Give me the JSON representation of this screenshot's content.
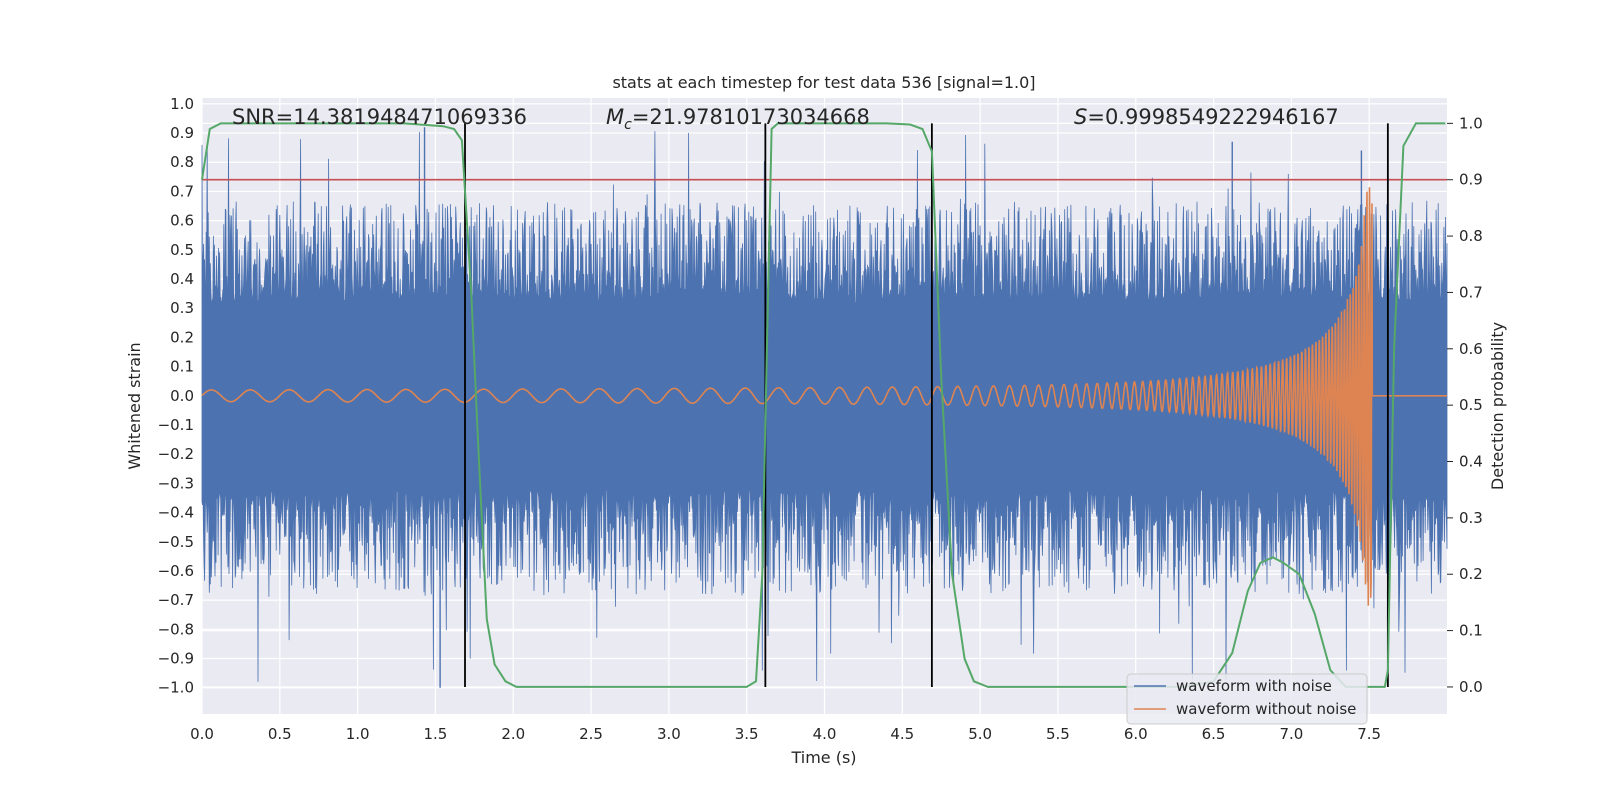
{
  "chart_data": {
    "type": "line",
    "title": "stats at each timestep for test data 536 [signal=1.0]",
    "xlabel": "Time (s)",
    "ylabel": "Whitened strain",
    "y2label": "Detection probability",
    "xlim": [
      0.0,
      8.0
    ],
    "ylim": [
      -1.09,
      1.02
    ],
    "y2lim": [
      -0.048,
      1.045
    ],
    "xticks": [
      "0.0",
      "0.5",
      "1.0",
      "1.5",
      "2.0",
      "2.5",
      "3.0",
      "3.5",
      "4.0",
      "4.5",
      "5.0",
      "5.5",
      "6.0",
      "6.5",
      "7.0",
      "7.5"
    ],
    "yticks": [
      "1.0",
      "0.9",
      "0.8",
      "0.7",
      "0.6",
      "0.5",
      "0.4",
      "0.3",
      "0.2",
      "0.1",
      "0.0",
      "−0.1",
      "−0.2",
      "−0.3",
      "−0.4",
      "−0.5",
      "−0.6",
      "−0.7",
      "−0.8",
      "−0.9",
      "−1.0"
    ],
    "y2ticks": [
      "1.0",
      "0.9",
      "0.8",
      "0.7",
      "0.6",
      "0.5",
      "0.4",
      "0.3",
      "0.2",
      "0.1",
      "0.0"
    ],
    "annotations": {
      "snr": "SNR=14.381948471069336",
      "mc_symbol": "M",
      "mc_sub": "c",
      "mc_value": "=21.97810173034668",
      "s_symbol": "S",
      "s_value": "=0.9998549222946167"
    },
    "threshold": {
      "axis": "right",
      "value": 0.9,
      "color": "#c44e52"
    },
    "vertical_markers": [
      1.69,
      3.62,
      4.69,
      7.62
    ],
    "noise_envelope": {
      "core_amplitude": 0.33,
      "typical_peak": 0.55,
      "max_peak": 0.92,
      "min_trough": -1.0
    },
    "chirp": {
      "start_amp": 0.02,
      "peak_amp": 0.72,
      "merger_time": 7.52,
      "start_freq_hz": 4,
      "end_freq_hz": 60
    },
    "series": [
      {
        "name": "waveform with noise",
        "axis": "left",
        "color": "#4c72b0"
      },
      {
        "name": "waveform without noise",
        "axis": "left",
        "color": "#dd8452"
      },
      {
        "name": "detection probability",
        "axis": "right",
        "color": "#55a868",
        "x": [
          0.0,
          0.05,
          0.12,
          0.3,
          0.5,
          1.0,
          1.3,
          1.55,
          1.62,
          1.67,
          1.73,
          1.78,
          1.83,
          1.88,
          1.95,
          2.02,
          2.1,
          2.5,
          3.0,
          3.3,
          3.5,
          3.56,
          3.6,
          3.63,
          3.66,
          3.7,
          3.8,
          4.0,
          4.4,
          4.55,
          4.63,
          4.69,
          4.75,
          4.82,
          4.9,
          4.96,
          5.05,
          5.5,
          6.0,
          6.3,
          6.5,
          6.62,
          6.72,
          6.8,
          6.88,
          6.95,
          7.05,
          7.15,
          7.25,
          7.35,
          7.45,
          7.5,
          7.55,
          7.6,
          7.62,
          7.66,
          7.72,
          7.8,
          7.9,
          7.99
        ],
        "y": [
          0.9,
          0.99,
          1.0,
          1.0,
          1.0,
          1.0,
          1.0,
          0.995,
          0.99,
          0.97,
          0.7,
          0.4,
          0.12,
          0.04,
          0.01,
          0.0,
          0.0,
          0.0,
          0.0,
          0.0,
          0.0,
          0.01,
          0.2,
          0.6,
          0.99,
          1.0,
          1.0,
          1.0,
          1.0,
          0.998,
          0.99,
          0.95,
          0.55,
          0.2,
          0.05,
          0.01,
          0.0,
          0.0,
          0.0,
          0.0,
          0.01,
          0.06,
          0.17,
          0.22,
          0.23,
          0.22,
          0.2,
          0.13,
          0.03,
          0.0,
          0.0,
          0.0,
          0.0,
          0.0,
          0.03,
          0.6,
          0.96,
          1.0,
          1.0,
          1.0
        ]
      }
    ]
  },
  "legend": {
    "noise_label": "waveform with noise",
    "clean_label": "waveform without noise"
  }
}
